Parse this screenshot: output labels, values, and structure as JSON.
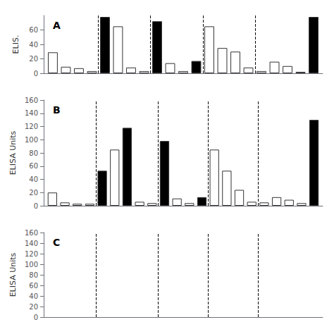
{
  "chart_data": [
    {
      "type": "bar",
      "title": "A",
      "ylabel": "ELIS.",
      "x": [
        1,
        2,
        3,
        4,
        5,
        6,
        7,
        8,
        9,
        10,
        11,
        12,
        13,
        14,
        15,
        16,
        17,
        18,
        19,
        20,
        21
      ],
      "values": [
        29,
        9,
        7,
        3,
        78,
        65,
        8,
        3,
        72,
        14,
        3,
        17,
        65,
        35,
        30,
        8,
        3,
        16,
        10,
        2,
        78
      ],
      "colors": [
        "white",
        "white",
        "white",
        "white",
        "black",
        "white",
        "white",
        "white",
        "black",
        "white",
        "white",
        "black",
        "white",
        "white",
        "white",
        "white",
        "white",
        "white",
        "white",
        "white",
        "black"
      ],
      "vlines": [
        4.5,
        8.5,
        12.5,
        16.5
      ],
      "xlim": [
        0.3,
        21.7
      ],
      "ylim": [
        0,
        80
      ],
      "yticks": [
        0,
        20,
        40,
        60
      ],
      "grid": false,
      "tick_labels": "y"
    },
    {
      "type": "bar",
      "title": "B",
      "ylabel": "ELISA Units",
      "x": [
        1,
        2,
        3,
        4,
        5,
        6,
        7,
        8,
        9,
        10,
        11,
        12,
        13,
        14,
        15,
        16,
        17,
        18,
        19,
        20,
        21,
        22
      ],
      "values": [
        20,
        5,
        3,
        3,
        53,
        85,
        118,
        6,
        4,
        98,
        11,
        4,
        13,
        85,
        53,
        24,
        6,
        5,
        13,
        9,
        4,
        130
      ],
      "colors": [
        "white",
        "white",
        "white",
        "white",
        "black",
        "white",
        "black",
        "white",
        "white",
        "black",
        "white",
        "white",
        "black",
        "white",
        "white",
        "white",
        "white",
        "white",
        "white",
        "white",
        "white",
        "black"
      ],
      "vlines": [
        4.5,
        9.5,
        13.5,
        17.5
      ],
      "xlim": [
        0.3,
        22.7
      ],
      "ylim": [
        0,
        160
      ],
      "yticks": [
        0,
        20,
        40,
        60,
        80,
        100,
        120,
        140,
        160
      ],
      "grid": false,
      "tick_labels": "y"
    },
    {
      "type": "bar",
      "title": "C",
      "ylabel": "ELISA Units",
      "x": [],
      "values": [],
      "colors": [],
      "vlines": [
        4.5,
        9.5,
        13.5,
        17.5
      ],
      "xlim": [
        0.3,
        22.7
      ],
      "ylim": [
        0,
        160
      ],
      "yticks": [
        0,
        20,
        40,
        60,
        80,
        100,
        120,
        140,
        160
      ],
      "grid": false,
      "tick_labels": "y"
    }
  ]
}
